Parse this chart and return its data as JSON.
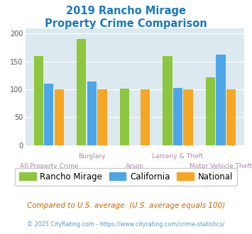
{
  "title_line1": "2019 Rancho Mirage",
  "title_line2": "Property Crime Comparison",
  "title_color": "#1a7abf",
  "categories": [
    "All Property Crime",
    "Burglary",
    "Arson",
    "Larceny & Theft",
    "Motor Vehicle Theft"
  ],
  "rancho_mirage": [
    160,
    191,
    101,
    160,
    122
  ],
  "california": [
    110,
    114,
    null,
    103,
    163
  ],
  "national": [
    100,
    100,
    100,
    100,
    100
  ],
  "bar_color_rm": "#8dc63f",
  "bar_color_ca": "#4da6e8",
  "bar_color_nat": "#f5a623",
  "ylim": [
    0,
    210
  ],
  "yticks": [
    0,
    50,
    100,
    150,
    200
  ],
  "background_color": "#dce9ee",
  "legend_labels": [
    "Rancho Mirage",
    "California",
    "National"
  ],
  "footnote1": "Compared to U.S. average. (U.S. average equals 100)",
  "footnote2": "© 2025 CityRating.com - https://www.cityrating.com/crime-statistics/",
  "footnote1_color": "#cc6600",
  "footnote2_color": "#5599cc",
  "label_color": "#aa88aa",
  "bar_width": 0.22,
  "bar_gap": 0.02
}
